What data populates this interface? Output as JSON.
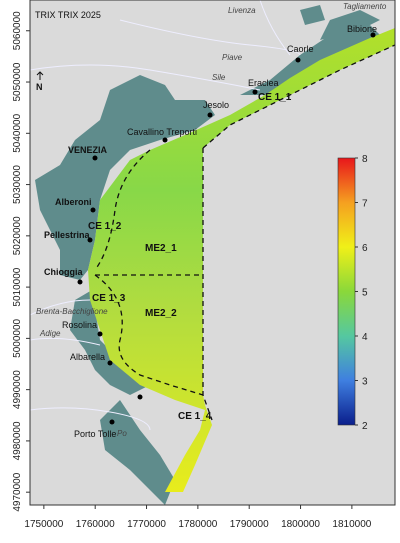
{
  "title": "TRIX TRIX 2025",
  "north": "N",
  "xaxis": {
    "lim": [
      1747300,
      1818400
    ],
    "ticks": [
      1750000,
      1760000,
      1770000,
      1780000,
      1790000,
      1800000,
      1810000
    ]
  },
  "yaxis": {
    "lim": [
      4967500,
      5066000
    ],
    "ticks": [
      4970000,
      4980000,
      4990000,
      5000000,
      5010000,
      5020000,
      5030000,
      5040000,
      5050000,
      5060000
    ]
  },
  "colorbar": {
    "lim": [
      2,
      8
    ],
    "ticks": [
      2,
      3,
      4,
      5,
      6,
      7,
      8
    ],
    "colors": [
      "#0a1e8c",
      "#3f7fe0",
      "#55c8a0",
      "#8ad83a",
      "#f0f018",
      "#f5a020",
      "#e8161b"
    ]
  },
  "places": [
    "Bibione",
    "Caorle",
    "Eraclea",
    "Jesolo",
    "Cavallino Treporti",
    "VENEZIA",
    "Alberoni",
    "Pellestrina",
    "Chioggia",
    "Rosolina",
    "Albarella",
    "Porto Tolle"
  ],
  "rivers": [
    "Livenza",
    "Tagliamento",
    "Piave",
    "Sile",
    "Brenta-Bacchiglione",
    "Adige",
    "Po"
  ],
  "zones": [
    "CE 1_1",
    "CE 1_2",
    "ME2_1",
    "CE 1_3",
    "ME2_2",
    "CE 1_4"
  ]
}
